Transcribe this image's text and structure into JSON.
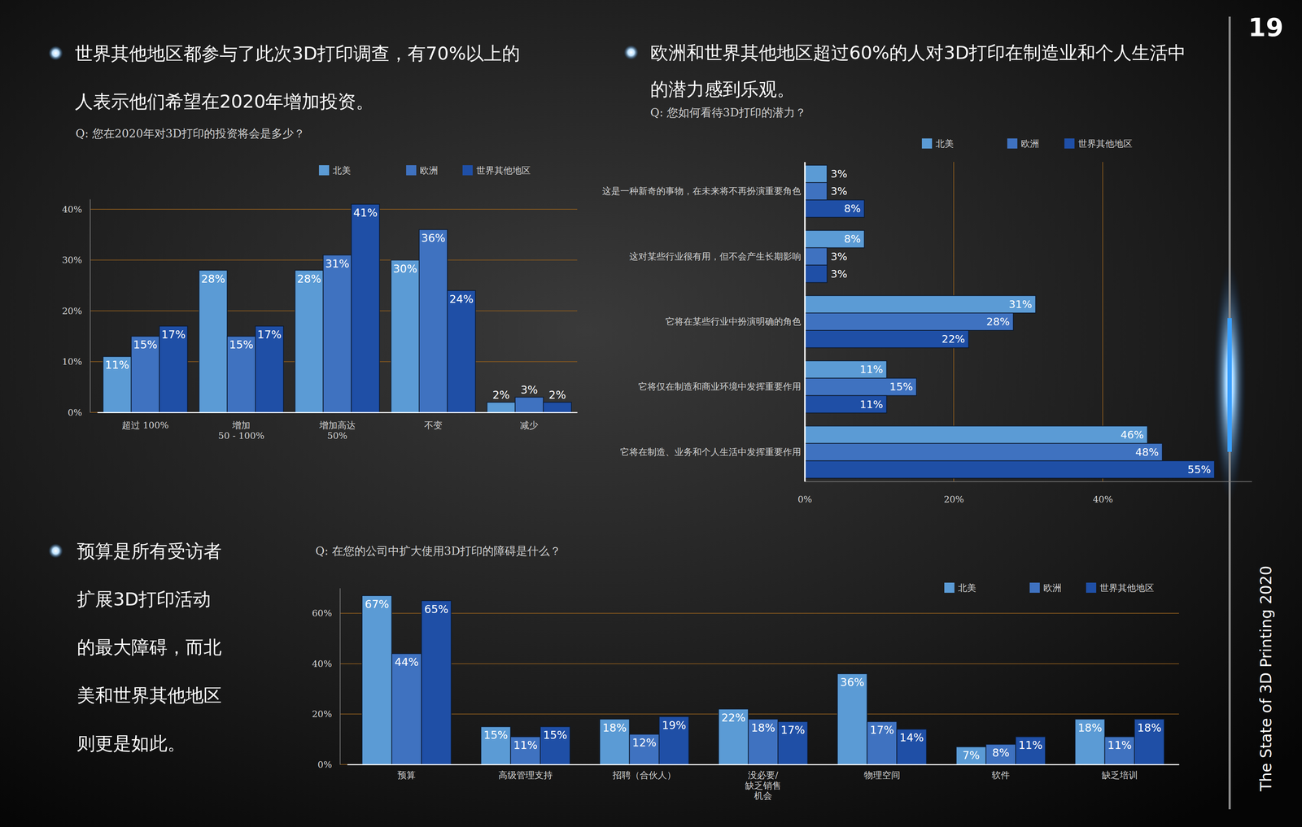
{
  "page": {
    "number": "19",
    "side_title": "The State of 3D Printing 2020"
  },
  "chart_data": [
    {
      "type": "bar",
      "title": "世界其他地区都参与了此次3D打印调查，有70%以上的人表示他们希望在2020年增加投资。",
      "subtitle": "Q: 您在2020年对3D打印的投资将会是多少？",
      "categories": [
        "超过 100%",
        "增加\n50 - 100%",
        "增加高达\n50%",
        "不变",
        "减少"
      ],
      "series": [
        {
          "name": "北美",
          "color": "#5b9bd5",
          "values": [
            11,
            28,
            28,
            30,
            2
          ],
          "value_labels": [
            "11%",
            "28%",
            "28%",
            "30%",
            "2%"
          ]
        },
        {
          "name": "欧洲",
          "color": "#3f72c0",
          "values": [
            15,
            15,
            31,
            36,
            3
          ],
          "value_labels": [
            "15%",
            "15%",
            "31%",
            "36%",
            "3%"
          ]
        },
        {
          "name": "世界其他地区",
          "color": "#1f4fa6",
          "values": [
            17,
            17,
            41,
            24,
            2
          ],
          "value_labels": [
            "17%",
            "17%",
            "41%",
            "24%",
            "2%"
          ]
        }
      ],
      "ylim": [
        0,
        42
      ],
      "yticks": [
        {
          "value": 0,
          "label": "0%"
        },
        {
          "value": 10,
          "label": "10%"
        },
        {
          "value": 20,
          "label": "20%"
        },
        {
          "value": 30,
          "label": "30%"
        },
        {
          "value": 40,
          "label": "40%"
        }
      ],
      "grid": true,
      "legend": "top",
      "data_labels": true
    },
    {
      "type": "bar",
      "orientation": "horizontal",
      "title": "欧洲和世界其他地区超过60%的人对3D打印在制造业和个人生活中的潜力感到乐观。",
      "subtitle": "Q: 您如何看待3D打印的潜力？",
      "categories": [
        "这是一种新奇的事物，在未来将不再扮演重要角色",
        "这对某些行业很有用，但不会产生长期影响",
        "它将在某些行业中扮演明确的角色",
        "它将仅在制造和商业环境中发挥重要作用",
        "它将在制造、业务和个人生活中发挥重要作用"
      ],
      "series": [
        {
          "name": "北美",
          "color": "#5b9bd5",
          "values": [
            3,
            8,
            31,
            11,
            46
          ],
          "value_labels": [
            "3%",
            "8%",
            "31%",
            "11%",
            "46%"
          ]
        },
        {
          "name": "欧洲",
          "color": "#3f72c0",
          "values": [
            3,
            3,
            28,
            15,
            48
          ],
          "value_labels": [
            "3%",
            "3%",
            "28%",
            "15%",
            "48%"
          ]
        },
        {
          "name": "世界其他地区",
          "color": "#1f4fa6",
          "values": [
            8,
            3,
            22,
            11,
            55
          ],
          "value_labels": [
            "8%",
            "3%",
            "22%",
            "11%",
            "55%"
          ]
        }
      ],
      "xlim": [
        0,
        60
      ],
      "xticks": [
        {
          "value": 0,
          "label": "0%"
        },
        {
          "value": 20,
          "label": "20%"
        },
        {
          "value": 40,
          "label": "40%"
        }
      ],
      "grid": true,
      "legend": "top",
      "data_labels": true
    },
    {
      "type": "bar",
      "title": "预算是所有受访者扩展3D打印活动的最大障碍，而北美和世界其他地区则更是如此。",
      "subtitle": "Q: 在您的公司中扩大使用3D打印的障碍是什么？",
      "categories": [
        "预算",
        "高级管理支持",
        "招聘（合伙人）",
        "没必要/\n缺乏销售\n机会",
        "物理空间",
        "软件",
        "缺乏培训"
      ],
      "series": [
        {
          "name": "北美",
          "color": "#5b9bd5",
          "values": [
            67,
            15,
            18,
            22,
            36,
            7,
            18
          ],
          "value_labels": [
            "67%",
            "15%",
            "18%",
            "22%",
            "36%",
            "7%",
            "18%"
          ]
        },
        {
          "name": "欧洲",
          "color": "#3f72c0",
          "values": [
            44,
            11,
            12,
            18,
            17,
            8,
            11
          ],
          "value_labels": [
            "44%",
            "11%",
            "12%",
            "18%",
            "17%",
            "8%",
            "11%"
          ]
        },
        {
          "name": "世界其他地区",
          "color": "#1f4fa6",
          "values": [
            65,
            15,
            19,
            17,
            14,
            11,
            18
          ],
          "value_labels": [
            "65%",
            "15%",
            "19%",
            "17%",
            "14%",
            "11%",
            "18%"
          ]
        }
      ],
      "ylim": [
        0,
        70
      ],
      "yticks": [
        {
          "value": 0,
          "label": "0%"
        },
        {
          "value": 20,
          "label": "20%"
        },
        {
          "value": 40,
          "label": "40%"
        },
        {
          "value": 60,
          "label": "60%"
        }
      ],
      "grid": true,
      "legend": "top-right",
      "data_labels": true
    }
  ]
}
